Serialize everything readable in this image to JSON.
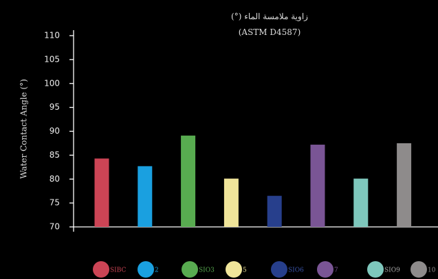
{
  "chart_data": {
    "type": "bar",
    "title": "(°) زاوية ملامسة الماء",
    "subtitle": "(ASTM D4587)",
    "ylabel": "Water Contact Angle (°)",
    "xlabel": "",
    "ylim": [
      70,
      110
    ],
    "yticks": [
      70,
      75,
      80,
      85,
      90,
      95,
      100,
      105,
      110
    ],
    "grid": false,
    "legend_position": "bottom",
    "series": [
      {
        "name": "SIBC",
        "value": 84.3,
        "color": "#cc4455",
        "legend_label_color": "#cc4455"
      },
      {
        "name": "2",
        "value": 82.7,
        "color": "#1aa0e0",
        "legend_label_color": "#1aa0e0"
      },
      {
        "name": "SIO3",
        "value": 89.1,
        "color": "#58ab50",
        "legend_label_color": "#58ab50"
      },
      {
        "name": "5",
        "value": 80.1,
        "color": "#f0e59a",
        "legend_label_color": "#f0e59a"
      },
      {
        "name": "SIO6",
        "value": 76.5,
        "color": "#273f8c",
        "legend_label_color": "#3a55aa"
      },
      {
        "name": "7",
        "value": 87.2,
        "color": "#7a5595",
        "legend_label_color": "#7a5595"
      },
      {
        "name": "SIO9",
        "value": 80.1,
        "color": "#7ec7bc",
        "legend_label_color": "#aaaaaa"
      },
      {
        "name": "10",
        "value": 87.5,
        "color": "#8e8b8b",
        "legend_label_color": "#8e8b8b"
      }
    ]
  }
}
